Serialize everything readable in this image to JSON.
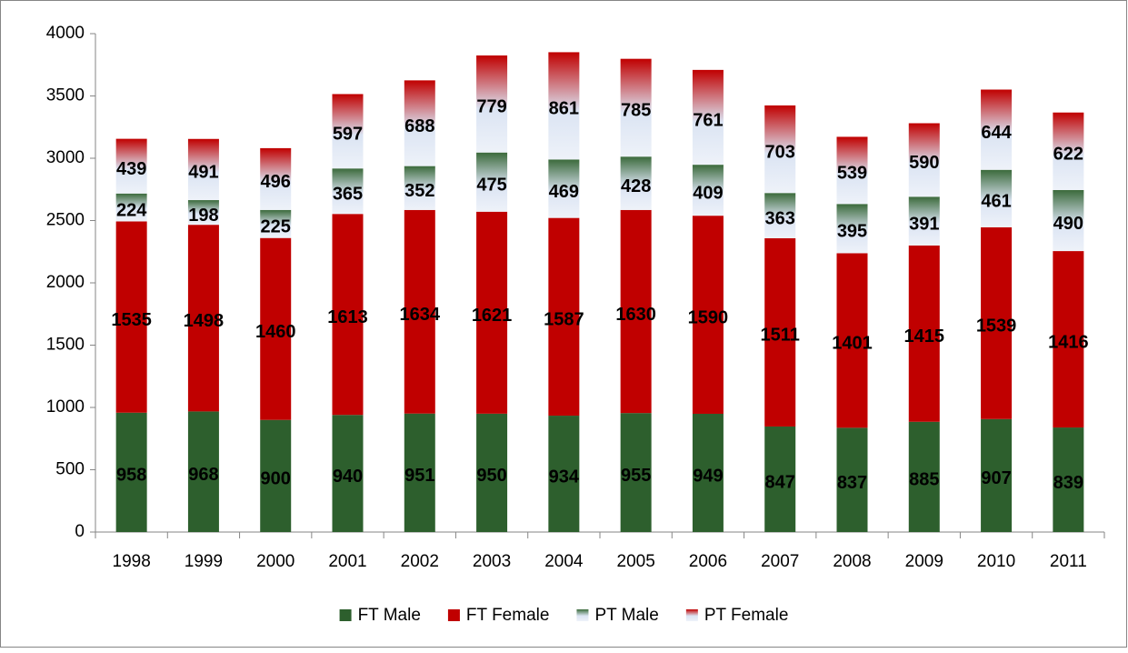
{
  "chart_data": {
    "type": "stacked_bar",
    "categories": [
      "1998",
      "1999",
      "2000",
      "2001",
      "2002",
      "2003",
      "2004",
      "2005",
      "2006",
      "2007",
      "2008",
      "2009",
      "2010",
      "2011"
    ],
    "series": [
      {
        "name": "FT Male",
        "color": "#2d5f2d",
        "values": [
          958,
          968,
          900,
          940,
          951,
          950,
          934,
          955,
          949,
          847,
          837,
          885,
          907,
          839
        ]
      },
      {
        "name": "FT Female",
        "color": "#c00000",
        "values": [
          1535,
          1498,
          1460,
          1613,
          1634,
          1621,
          1587,
          1630,
          1590,
          1511,
          1401,
          1415,
          1539,
          1416
        ]
      },
      {
        "name": "PT Male",
        "color": "#3b6a3b",
        "gradient": true,
        "values": [
          224,
          198,
          225,
          365,
          352,
          475,
          469,
          428,
          409,
          363,
          395,
          391,
          461,
          490
        ]
      },
      {
        "name": "PT Female",
        "color": "#c00000",
        "gradient": true,
        "values": [
          439,
          491,
          496,
          597,
          688,
          779,
          861,
          785,
          761,
          703,
          539,
          590,
          644,
          622
        ]
      }
    ],
    "ylim": [
      0,
      4000
    ],
    "yticks": [
      0,
      500,
      1000,
      1500,
      2000,
      2500,
      3000,
      3500,
      4000
    ],
    "grid": false,
    "legend": "bottom"
  }
}
